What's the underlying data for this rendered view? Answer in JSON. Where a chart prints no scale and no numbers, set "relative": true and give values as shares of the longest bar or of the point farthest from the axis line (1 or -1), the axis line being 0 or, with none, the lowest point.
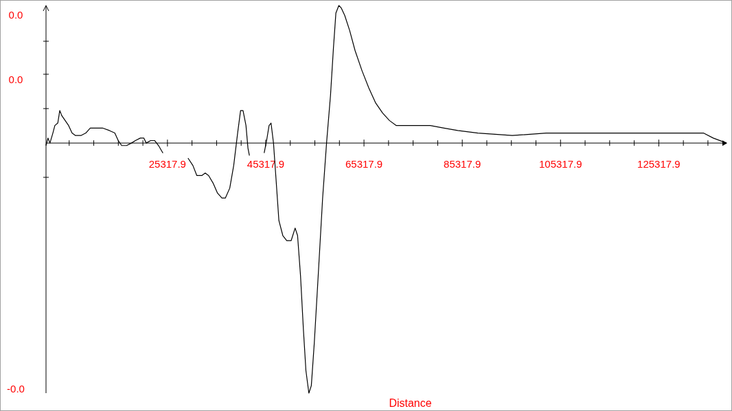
{
  "chart_data": {
    "type": "line",
    "relative": true,
    "xlabel": "Distance",
    "color": "#000000",
    "xlim": [
      600,
      139100
    ],
    "xticks": [
      {
        "value": 5317.9,
        "label": null
      },
      {
        "value": 10317.9,
        "label": null
      },
      {
        "value": 15317.9,
        "label": null
      },
      {
        "value": 20317.9,
        "label": null
      },
      25317.9,
      {
        "value": 30317.9,
        "label": null
      },
      {
        "value": 35317.9,
        "label": null
      },
      {
        "value": 40317.9,
        "label": null
      },
      45317.9,
      {
        "value": 50317.9,
        "label": null
      },
      {
        "value": 55317.9,
        "label": null
      },
      {
        "value": 60317.9,
        "label": null
      },
      65317.9,
      {
        "value": 70317.9,
        "label": null
      },
      {
        "value": 75317.9,
        "label": null
      },
      {
        "value": 80317.9,
        "label": null
      },
      85317.9,
      {
        "value": 90317.9,
        "label": null
      },
      {
        "value": 95317.9,
        "label": null
      },
      {
        "value": 100317.9,
        "label": null
      },
      105317.9,
      {
        "value": 110317.9,
        "label": null
      },
      {
        "value": 115317.9,
        "label": null
      },
      {
        "value": 120317.9,
        "label": null
      },
      125317.9,
      {
        "value": 130317.9,
        "label": null
      },
      {
        "value": 135317.9,
        "label": null
      }
    ],
    "annotations": [
      "0.0",
      "0.0",
      "-0.0"
    ],
    "x": [
      600,
      1000,
      1400,
      2000,
      2400,
      3000,
      3400,
      3800,
      4500,
      5200,
      5900,
      6600,
      7700,
      8700,
      9600,
      10700,
      12100,
      13500,
      14600,
      15300,
      16000,
      17000,
      18000,
      18800,
      19800,
      20500,
      21000,
      21900,
      22700,
      23500,
      24400,
      25500,
      29500,
      30500,
      31300,
      32300,
      33000,
      33700,
      34600,
      35500,
      36400,
      37100,
      38000,
      38800,
      39600,
      40200,
      40700,
      41300,
      41700,
      42000,
      43000,
      45000,
      45500,
      46000,
      46400,
      46900,
      47400,
      48000,
      48800,
      49600,
      50500,
      51300,
      51800,
      52400,
      53000,
      53500,
      54100,
      54600,
      55200,
      56000,
      56900,
      57700,
      58500,
      59100,
      59600,
      60200,
      60700,
      61400,
      62400,
      63500,
      64900,
      66300,
      67700,
      69100,
      70500,
      71900,
      74600,
      78800,
      81600,
      84400,
      88500,
      95500,
      102400,
      109300,
      116300,
      123300,
      130200,
      134400,
      136400,
      139100
    ],
    "values": [
      -0.01,
      0.02,
      0,
      0.04,
      0.07,
      0.08,
      0.13,
      0.11,
      0.09,
      0.07,
      0.04,
      0.03,
      0.03,
      0.04,
      0.06,
      0.06,
      0.06,
      0.05,
      0.04,
      0.01,
      -0.01,
      -0.01,
      0,
      0.01,
      0.02,
      0.02,
      0,
      0.01,
      0.01,
      -0.01,
      -0.04,
      null,
      -0.06,
      -0.09,
      -0.13,
      -0.13,
      -0.12,
      -0.13,
      -0.16,
      -0.2,
      -0.22,
      -0.22,
      -0.18,
      -0.09,
      0.04,
      0.13,
      0.13,
      0.07,
      -0.02,
      -0.05,
      null,
      -0.04,
      0.01,
      0.07,
      0.08,
      0,
      -0.14,
      -0.31,
      -0.37,
      -0.39,
      -0.39,
      -0.34,
      -0.37,
      -0.53,
      -0.75,
      -0.91,
      -1,
      -0.97,
      -0.8,
      -0.53,
      -0.22,
      0,
      0.19,
      0.38,
      0.52,
      0.55,
      0.54,
      0.51,
      0.45,
      0.37,
      0.29,
      0.22,
      0.16,
      0.12,
      0.09,
      0.07,
      0.07,
      0.07,
      0.06,
      0.05,
      0.04,
      0.03,
      0.04,
      0.04,
      0.04,
      0.04,
      0.04,
      0.04,
      0.02,
      0
    ]
  }
}
